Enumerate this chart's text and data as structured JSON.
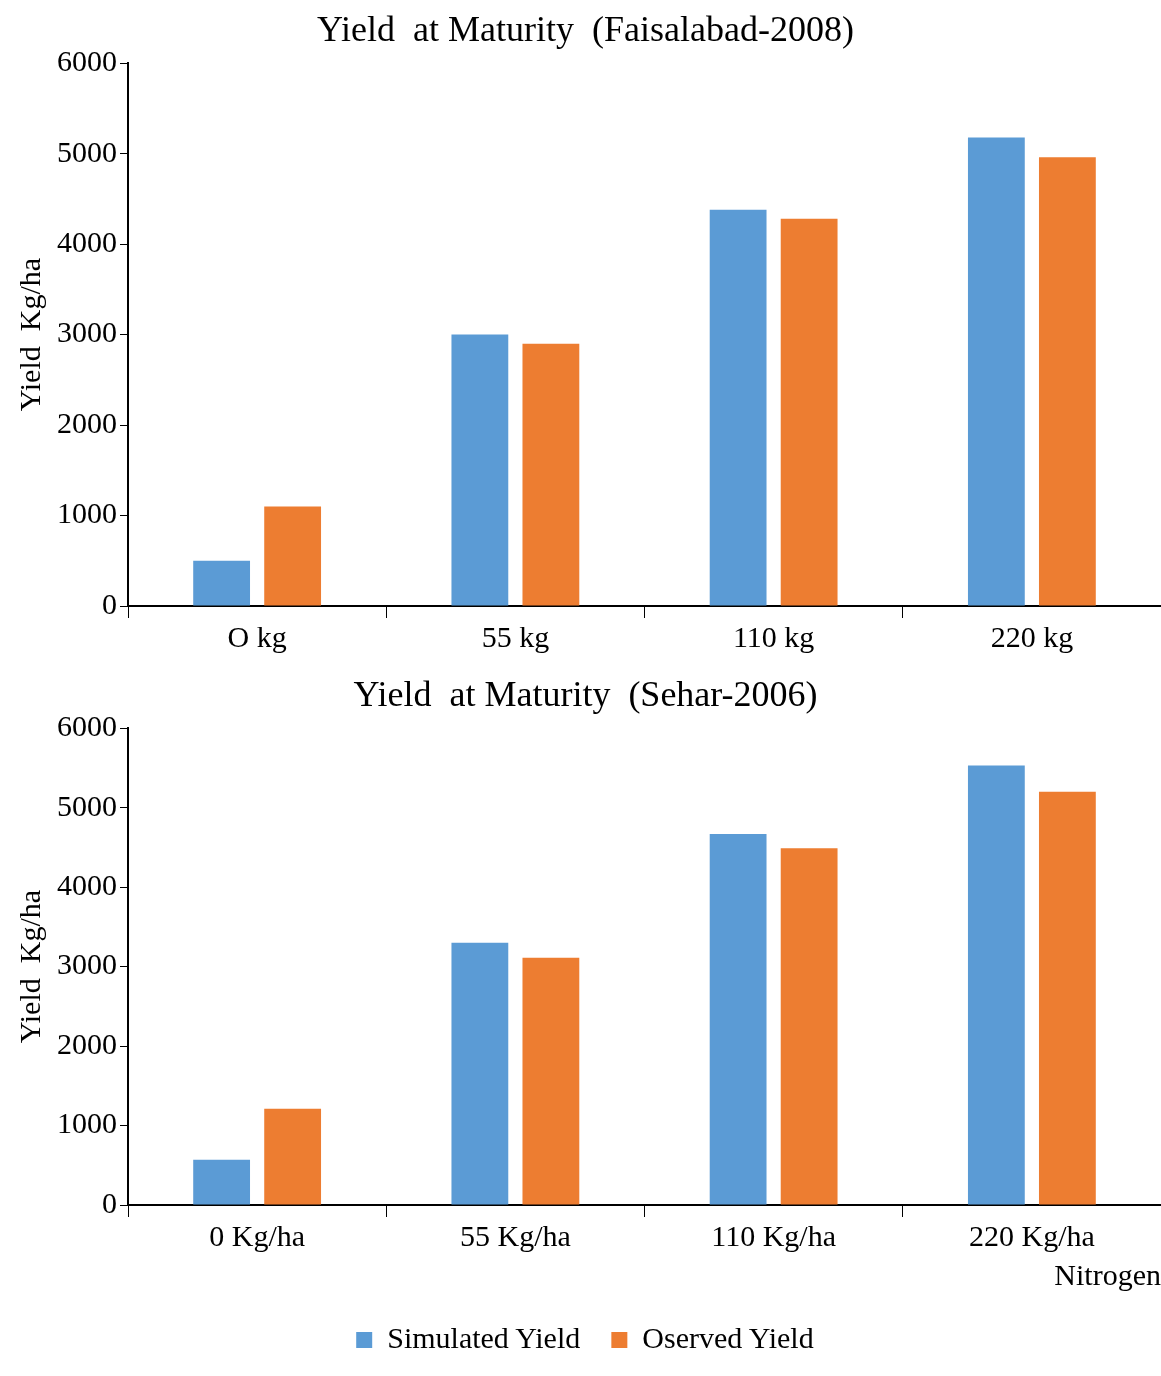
{
  "chart_data": [
    {
      "type": "bar",
      "title": "Yield  at Maturity  (Faisalabad-2008)",
      "ylabel": "Yield  Kg/ha",
      "categories": [
        "O kg",
        "55 kg",
        "110 kg",
        "220 kg"
      ],
      "series": [
        {
          "color": "#5b9bd5",
          "values": [
            500,
            3000,
            4380,
            5180
          ]
        },
        {
          "color": "#ed7d31",
          "values": [
            1100,
            2900,
            4280,
            4960
          ]
        }
      ],
      "ylim": [
        0,
        6000
      ],
      "yticks": [
        0,
        1000,
        2000,
        3000,
        4000,
        5000,
        6000
      ],
      "grid": false,
      "legend": false
    },
    {
      "type": "bar",
      "title": "Yield  at Maturity  (Sehar-2006)",
      "ylabel": "Yield  Kg/ha",
      "xlabel": "Nitrogen",
      "categories": [
        "0 Kg/ha",
        "55 Kg/ha",
        "110 Kg/ha",
        "220 Kg/ha"
      ],
      "series": [
        {
          "name": "Simulated Yield",
          "color": "#5b9bd5",
          "values": [
            570,
            3300,
            4670,
            5530
          ]
        },
        {
          "name": "Oserved Yield",
          "color": "#ed7d31",
          "values": [
            1210,
            3110,
            4490,
            5200
          ]
        }
      ],
      "ylim": [
        0,
        6000
      ],
      "yticks": [
        0,
        1000,
        2000,
        3000,
        4000,
        5000,
        6000
      ],
      "grid": false,
      "legend": "bottom"
    }
  ]
}
